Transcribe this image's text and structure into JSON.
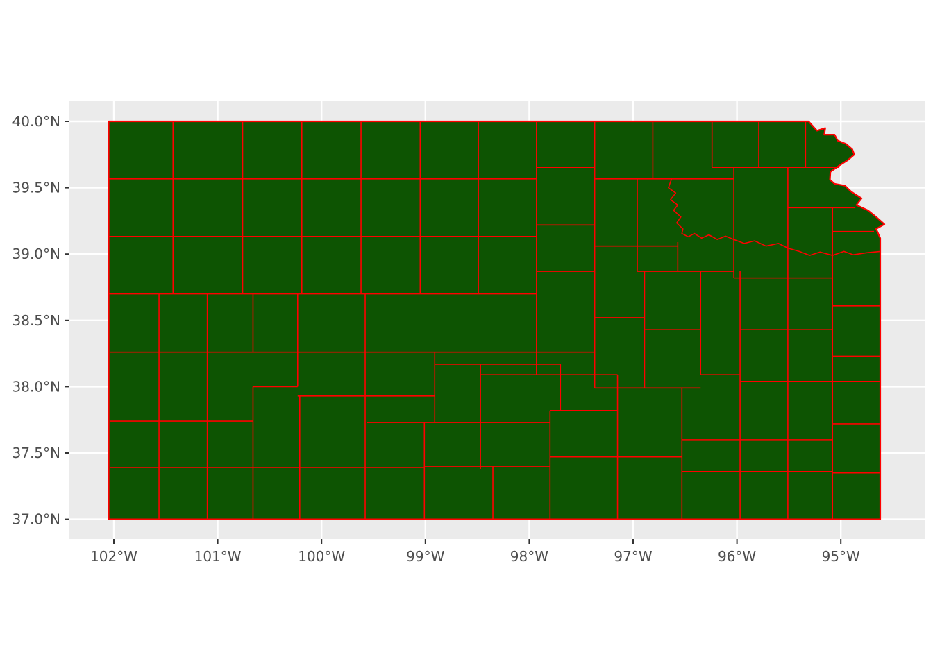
{
  "figure": {
    "background": "#FFFFFF"
  },
  "panel": {
    "background": "#EBEBEB",
    "grid_major_color": "#FFFFFF"
  },
  "map": {
    "region_label": "kansas-counties",
    "county_fill": "#0D5402",
    "border_color": "#FF0000",
    "state_outline": [
      [
        -102.05,
        40.0
      ],
      [
        -95.31,
        40.0
      ],
      [
        -95.23,
        39.93
      ],
      [
        -95.15,
        39.95
      ],
      [
        -95.16,
        39.9
      ],
      [
        -95.06,
        39.9
      ],
      [
        -95.03,
        39.855
      ],
      [
        -94.95,
        39.83
      ],
      [
        -94.89,
        39.79
      ],
      [
        -94.87,
        39.75
      ],
      [
        -94.93,
        39.71
      ],
      [
        -95.02,
        39.665
      ],
      [
        -95.1,
        39.62
      ],
      [
        -95.105,
        39.56
      ],
      [
        -95.06,
        39.53
      ],
      [
        -94.96,
        39.515
      ],
      [
        -94.9,
        39.47
      ],
      [
        -94.8,
        39.42
      ],
      [
        -94.85,
        39.37
      ],
      [
        -94.74,
        39.33
      ],
      [
        -94.66,
        39.28
      ],
      [
        -94.58,
        39.225
      ],
      [
        -94.66,
        39.19
      ],
      [
        -94.62,
        39.12
      ],
      [
        -94.62,
        37.0
      ],
      [
        -102.05,
        37.0
      ]
    ],
    "county_lines": {
      "vertical": [
        [
          -101.43,
          40.0,
          38.7
        ],
        [
          -100.76,
          40.0,
          38.7
        ],
        [
          -100.19,
          40.0,
          38.7
        ],
        [
          -99.62,
          40.0,
          38.7
        ],
        [
          -99.05,
          40.0,
          38.7
        ],
        [
          -98.49,
          40.0,
          38.7
        ],
        [
          -97.93,
          40.0,
          38.09
        ],
        [
          -97.37,
          40.0,
          37.99
        ],
        [
          -96.81,
          40.0,
          39.567
        ],
        [
          -96.24,
          40.0,
          39.654
        ],
        [
          -95.79,
          40.0,
          39.654
        ],
        [
          -95.34,
          40.0,
          39.654
        ],
        [
          -96.96,
          39.567,
          38.87
        ],
        [
          -96.03,
          39.654,
          38.82
        ],
        [
          -95.51,
          39.654,
          37.0
        ],
        [
          -95.08,
          39.35,
          37.0
        ],
        [
          -96.89,
          38.87,
          37.99
        ],
        [
          -96.57,
          39.09,
          38.87
        ],
        [
          -96.35,
          38.87,
          38.09
        ],
        [
          -95.97,
          38.87,
          37.0
        ],
        [
          -96.53,
          37.99,
          37.0
        ],
        [
          -97.15,
          38.09,
          37.0
        ],
        [
          -97.7,
          38.17,
          37.82
        ],
        [
          -97.8,
          37.82,
          37.0
        ],
        [
          -98.47,
          38.17,
          37.38
        ],
        [
          -98.35,
          37.4,
          37.0
        ],
        [
          -98.91,
          38.26,
          37.73
        ],
        [
          -99.01,
          37.73,
          37.0
        ],
        [
          -99.58,
          38.7,
          37.0
        ],
        [
          -100.23,
          38.7,
          38.0
        ],
        [
          -100.66,
          38.7,
          38.26
        ],
        [
          -100.66,
          38.0,
          37.0
        ],
        [
          -100.21,
          37.93,
          37.0
        ],
        [
          -101.1,
          38.7,
          37.0
        ],
        [
          -101.565,
          38.7,
          37.0
        ]
      ],
      "horizontal": [
        [
          39.567,
          -102.05,
          -97.93
        ],
        [
          39.567,
          -97.37,
          -96.03
        ],
        [
          39.654,
          -97.93,
          -97.37
        ],
        [
          39.654,
          -96.24,
          -95.02
        ],
        [
          39.219,
          -97.93,
          -97.37
        ],
        [
          39.133,
          -102.05,
          -97.93
        ],
        [
          39.06,
          -97.37,
          -96.57
        ],
        [
          38.7,
          -102.05,
          -97.93
        ],
        [
          38.87,
          -97.93,
          -97.37
        ],
        [
          38.87,
          -96.96,
          -96.03
        ],
        [
          38.82,
          -96.03,
          -95.08
        ],
        [
          38.61,
          -95.08,
          -94.62
        ],
        [
          38.52,
          -97.37,
          -96.89
        ],
        [
          38.43,
          -96.89,
          -96.35
        ],
        [
          38.43,
          -95.97,
          -95.08
        ],
        [
          38.26,
          -102.04,
          -97.37
        ],
        [
          38.23,
          -95.08,
          -94.62
        ],
        [
          38.17,
          -98.91,
          -97.7
        ],
        [
          38.09,
          -98.47,
          -97.15
        ],
        [
          38.09,
          -96.35,
          -95.97
        ],
        [
          38.04,
          -95.97,
          -94.62
        ],
        [
          38.0,
          -100.66,
          -100.23
        ],
        [
          37.99,
          -97.37,
          -96.35
        ],
        [
          37.93,
          -100.23,
          -98.91
        ],
        [
          37.82,
          -97.8,
          -97.15
        ],
        [
          37.74,
          -102.04,
          -100.66
        ],
        [
          37.73,
          -99.565,
          -97.8
        ],
        [
          37.72,
          -95.08,
          -94.62
        ],
        [
          37.6,
          -96.53,
          -95.08
        ],
        [
          37.47,
          -97.8,
          -96.53
        ],
        [
          37.4,
          -99.01,
          -97.8
        ],
        [
          37.39,
          -102.04,
          -99.01
        ],
        [
          37.36,
          -96.53,
          -95.08
        ],
        [
          37.35,
          -95.08,
          -94.62
        ],
        [
          39.35,
          -95.51,
          -94.86
        ],
        [
          39.17,
          -95.08,
          -94.68
        ]
      ],
      "rivers": [
        [
          [
            -96.63,
            39.567
          ],
          [
            -96.66,
            39.5
          ],
          [
            -96.59,
            39.46
          ],
          [
            -96.64,
            39.41
          ],
          [
            -96.57,
            39.37
          ],
          [
            -96.61,
            39.33
          ],
          [
            -96.54,
            39.28
          ],
          [
            -96.58,
            39.235
          ],
          [
            -96.52,
            39.19
          ],
          [
            -96.53,
            39.155
          ],
          [
            -96.47,
            39.13
          ],
          [
            -96.41,
            39.155
          ],
          [
            -96.34,
            39.12
          ],
          [
            -96.27,
            39.145
          ],
          [
            -96.19,
            39.11
          ],
          [
            -96.11,
            39.135
          ],
          [
            -96.03,
            39.11
          ]
        ],
        [
          [
            -96.03,
            39.11
          ],
          [
            -95.93,
            39.08
          ],
          [
            -95.83,
            39.1
          ],
          [
            -95.72,
            39.06
          ],
          [
            -95.6,
            39.08
          ],
          [
            -95.51,
            39.045
          ],
          [
            -95.4,
            39.02
          ],
          [
            -95.3,
            38.99
          ],
          [
            -95.2,
            39.015
          ],
          [
            -95.08,
            38.99
          ],
          [
            -94.97,
            39.02
          ],
          [
            -94.88,
            38.995
          ],
          [
            -94.75,
            39.01
          ],
          [
            -94.62,
            39.02
          ]
        ]
      ]
    }
  },
  "axes": {
    "text_color": "#4D4D4D",
    "tick_color": "#333333",
    "x": {
      "ticks": [
        {
          "label": "102°W",
          "lon": -102
        },
        {
          "label": "101°W",
          "lon": -101
        },
        {
          "label": "100°W",
          "lon": -100
        },
        {
          "label": "99°W",
          "lon": -99
        },
        {
          "label": "98°W",
          "lon": -98
        },
        {
          "label": "97°W",
          "lon": -97
        },
        {
          "label": "96°W",
          "lon": -96
        },
        {
          "label": "95°W",
          "lon": -95
        }
      ]
    },
    "y": {
      "ticks": [
        {
          "label": "40.0°N",
          "lat": 40.0
        },
        {
          "label": "39.5°N",
          "lat": 39.5
        },
        {
          "label": "39.0°N",
          "lat": 39.0
        },
        {
          "label": "38.5°N",
          "lat": 38.5
        },
        {
          "label": "38.0°N",
          "lat": 38.0
        },
        {
          "label": "37.5°N",
          "lat": 37.5
        },
        {
          "label": "37.0°N",
          "lat": 37.0
        }
      ]
    }
  }
}
